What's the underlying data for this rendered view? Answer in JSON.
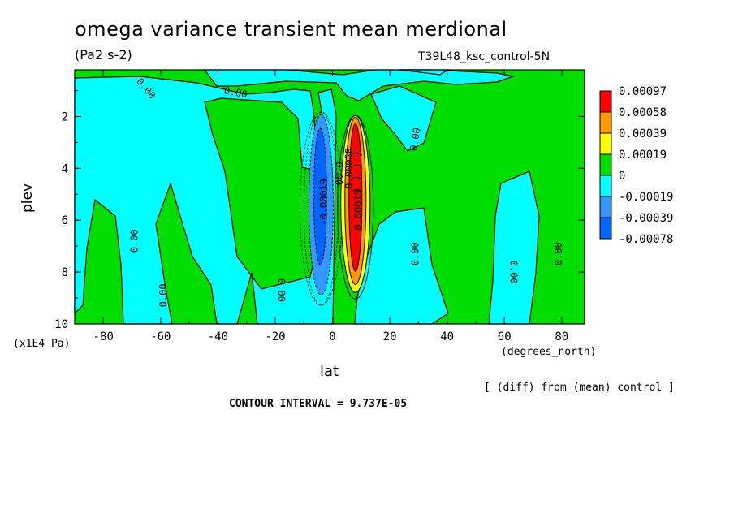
{
  "title": "omega variance transient mean merdional",
  "units": "(Pa2 s-2)",
  "run_label": "T39L48_ksc_control-5N",
  "comparison_note": "[ (diff) from (mean) control ]",
  "contour_interval": "CONTOUR INTERVAL = 9.737E-05",
  "chart_data": {
    "type": "heatmap",
    "xlabel": "lat",
    "x_unit": "(degrees_north)",
    "ylabel": "plev",
    "y_unit": "(x1E4 Pa)",
    "xlim": [
      -90,
      88
    ],
    "ylim": [
      10,
      0.2
    ],
    "x_ticks": [
      -80,
      -60,
      -40,
      -20,
      0,
      20,
      40,
      60,
      80
    ],
    "x_tick_labels": [
      "-80",
      "-60",
      "-40",
      "-20",
      "0",
      "20",
      "40",
      "60",
      "80"
    ],
    "y_ticks": [
      2,
      4,
      6,
      8,
      10
    ],
    "y_tick_labels": [
      "2",
      "4",
      "6",
      "8",
      "10"
    ],
    "legend": {
      "placement": "right",
      "levels": [
        "0.00097",
        "0.00058",
        "0.00039",
        "0.00019",
        "0",
        "-0.00019",
        "-0.00039",
        "-0.00078"
      ],
      "colors": [
        "#ff0000",
        "#ff9900",
        "#ffff00",
        "#00dd00",
        "#00dd00",
        "#00ffff",
        "#3399ff",
        "#0066ff"
      ]
    },
    "background_color": "#00dd00",
    "neg_region_color": "#00ffff",
    "features": [
      {
        "kind": "negative_core",
        "lat": -4,
        "plev_top": 2.3,
        "plev_bottom": 8.5,
        "peak_level": "-0.00078"
      },
      {
        "kind": "positive_core",
        "lat": 8,
        "plev_top": 2.4,
        "plev_bottom": 8.6,
        "peak_level": "0.00097"
      }
    ],
    "contour_labels": [
      {
        "text": "0.00",
        "lat": -66,
        "plev": 1.0,
        "angle": 50
      },
      {
        "text": "0.00",
        "lat": -34,
        "plev": 1.2,
        "angle": 10
      },
      {
        "text": "0.00",
        "lat": -68,
        "plev": 6.8,
        "angle": -90
      },
      {
        "text": "0.00",
        "lat": -58,
        "plev": 8.9,
        "angle": -90
      },
      {
        "text": "0.00",
        "lat": -19,
        "plev": 8.7,
        "angle": 90
      },
      {
        "text": "0.00",
        "lat": 30,
        "plev": 2.9,
        "angle": -80
      },
      {
        "text": "0.00",
        "lat": 30,
        "plev": 7.3,
        "angle": -90
      },
      {
        "text": "0.00",
        "lat": 62,
        "plev": 8.0,
        "angle": 90
      },
      {
        "text": "0.00",
        "lat": 80,
        "plev": 7.3,
        "angle": -90
      },
      {
        "text": "0.00",
        "lat": 1,
        "plev": 4.2,
        "angle": 90
      },
      {
        "text": "-0.00019",
        "lat": -2,
        "plev": 5.3,
        "angle": -90
      },
      {
        "text": "0.00019",
        "lat": 10,
        "plev": 5.6,
        "angle": -90
      },
      {
        "text": "0.00058",
        "lat": 7,
        "plev": 4.0,
        "angle": -90
      }
    ]
  }
}
